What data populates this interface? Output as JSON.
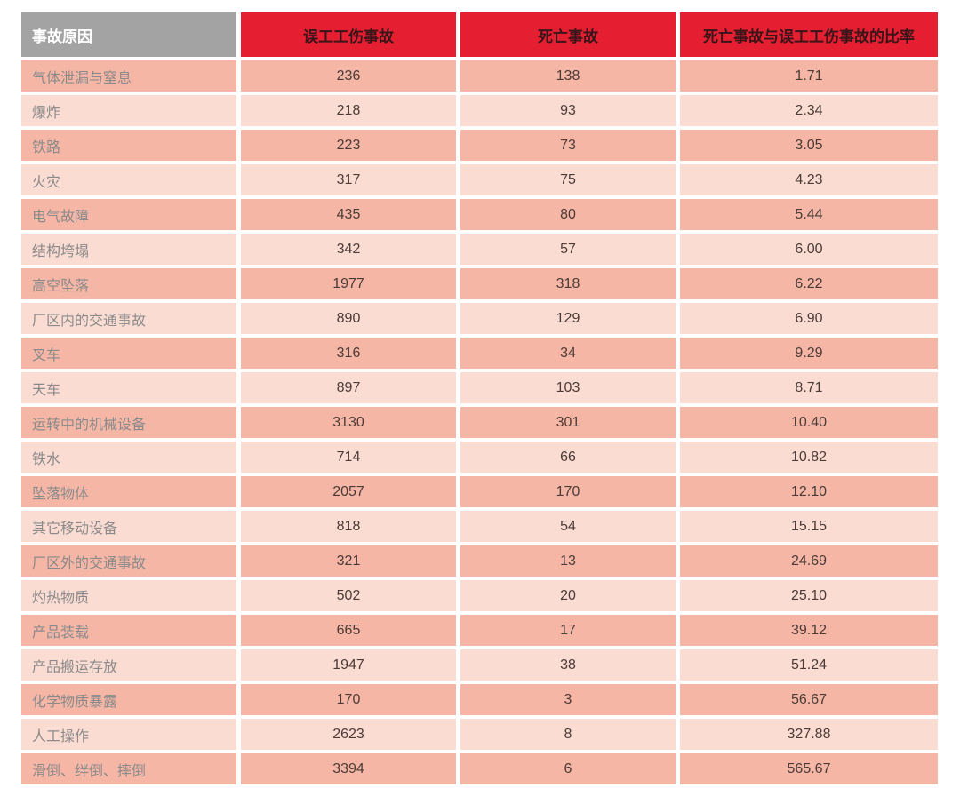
{
  "chart_data": {
    "type": "table",
    "columns": [
      "事故原因",
      "误工工伤事故",
      "死亡事故",
      "死亡事故与误工工伤事故的比率"
    ],
    "rows": [
      [
        "气体泄漏与窒息",
        "236",
        "138",
        "1.71"
      ],
      [
        "爆炸",
        "218",
        "93",
        "2.34"
      ],
      [
        "铁路",
        "223",
        "73",
        "3.05"
      ],
      [
        "火灾",
        "317",
        "75",
        "4.23"
      ],
      [
        "电气故障",
        "435",
        "80",
        "5.44"
      ],
      [
        "结构垮塌",
        "342",
        "57",
        "6.00"
      ],
      [
        "高空坠落",
        "1977",
        "318",
        "6.22"
      ],
      [
        "厂区内的交通事故",
        "890",
        "129",
        "6.90"
      ],
      [
        "叉车",
        "316",
        "34",
        "9.29"
      ],
      [
        "天车",
        "897",
        "103",
        "8.71"
      ],
      [
        "运转中的机械设备",
        "3130",
        "301",
        "10.40"
      ],
      [
        "铁水",
        "714",
        "66",
        "10.82"
      ],
      [
        "坠落物体",
        "2057",
        "170",
        "12.10"
      ],
      [
        "其它移动设备",
        "818",
        "54",
        "15.15"
      ],
      [
        "厂区外的交通事故",
        "321",
        "13",
        "24.69"
      ],
      [
        "灼热物质",
        "502",
        "20",
        "25.10"
      ],
      [
        "产品装载",
        "665",
        "17",
        "39.12"
      ],
      [
        "产品搬运存放",
        "1947",
        "38",
        "51.24"
      ],
      [
        "化学物质暴露",
        "170",
        "3",
        "56.67"
      ],
      [
        "人工操作",
        "2623",
        "8",
        "327.88"
      ],
      [
        "滑倒、绊倒、摔倒",
        "3394",
        "6",
        "565.67"
      ]
    ],
    "layout": {
      "row_stripes": "odd-dark-even-light",
      "header_style": "first-cell-gray-rest-red"
    }
  },
  "colors": {
    "header_gray_bg": "#a3a3a3",
    "header_gray_text": "#ffffff",
    "header_red_bg": "#e61e31",
    "header_red_text": "#371519",
    "row_odd_bg": "#f5b6a6",
    "row_even_bg": "#fbdcd3",
    "cause_text": "#8a8a8a",
    "number_text": "#4a3b36",
    "page_bg": "#ffffff"
  }
}
